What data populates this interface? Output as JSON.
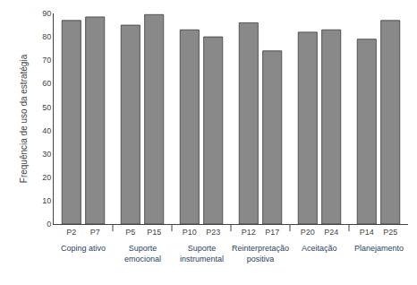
{
  "chart_data": {
    "type": "bar",
    "ylabel": "Frequência de uso da estratégia",
    "categories": [
      "P2",
      "P7",
      "P5",
      "P15",
      "P10",
      "P23",
      "P12",
      "P17",
      "P20",
      "P24",
      "P14",
      "P25"
    ],
    "values": [
      87,
      88.5,
      85,
      89.5,
      83,
      80,
      86,
      74,
      82,
      83,
      79,
      87
    ],
    "groups": [
      {
        "label": "Coping ativo",
        "categories": [
          "P2",
          "P7"
        ]
      },
      {
        "label": "Suporte\nemocional",
        "categories": [
          "P5",
          "P15"
        ]
      },
      {
        "label": "Suporte\ninstrumental",
        "categories": [
          "P10",
          "P23"
        ]
      },
      {
        "label": "Reinterpretação\npositiva",
        "categories": [
          "P12",
          "P17"
        ]
      },
      {
        "label": "Aceitação",
        "categories": [
          "P20",
          "P24"
        ]
      },
      {
        "label": "Planejamento",
        "categories": [
          "P14",
          "P25"
        ]
      }
    ],
    "color": "#898989",
    "ylim": [
      0,
      90
    ],
    "yticks": [
      0,
      10,
      20,
      30,
      40,
      50,
      60,
      70,
      80,
      90
    ],
    "grid": false
  }
}
